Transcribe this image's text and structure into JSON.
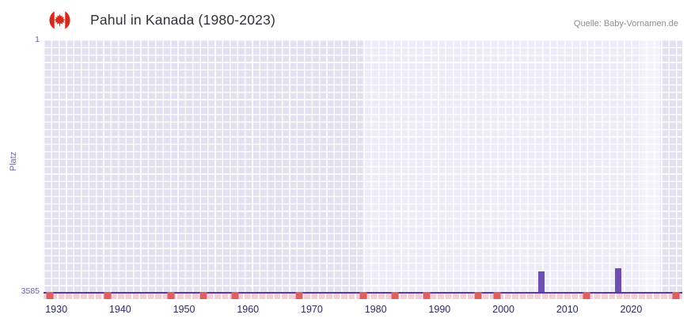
{
  "header": {
    "title": "Pahul in Kanada (1980-2023)",
    "source": "Quelle: Baby-Vornamen.de"
  },
  "chart_data": {
    "type": "bar",
    "title": "Pahul in Kanada (1980-2023)",
    "xlabel": "",
    "ylabel": "Platz",
    "y_axis": {
      "min": 1,
      "max": 3585,
      "inverted": true,
      "top_label": "1",
      "bottom_label": "3585"
    },
    "x_axis": {
      "min": 1928,
      "max": 2028,
      "ticks": [
        1930,
        1940,
        1950,
        1960,
        1970,
        1980,
        1990,
        2000,
        2010,
        2020
      ]
    },
    "bars": [
      {
        "year": 2006,
        "rank": 3280
      },
      {
        "year": 2018,
        "rank": 3240
      }
    ],
    "no_data_marker_years": [
      1929,
      1938,
      1948,
      1953,
      1958,
      1968,
      1978,
      1983,
      1988,
      1996,
      1999,
      2013,
      2027
    ],
    "bands": [
      {
        "start": 1978,
        "end": 2021.5,
        "color": "#edebf7"
      },
      {
        "start": 2021.5,
        "end": 2024.5,
        "color": "#f4f3fb"
      }
    ],
    "legend": null,
    "grid": true,
    "colors": {
      "bar": "#6d4fb2",
      "axis_line": "#5b3aa8",
      "no_data_marker": "#dd5f5f",
      "no_data_strip": "#f3ced6",
      "plot_background": "#e3e1f0",
      "plot_background_highlight": "#edebf7",
      "gridline": "#ffffff",
      "x_tick_label": "#2b2b63",
      "y_tick_label": "#6a63a8",
      "y_axis_label": "#7a5fb5"
    }
  }
}
